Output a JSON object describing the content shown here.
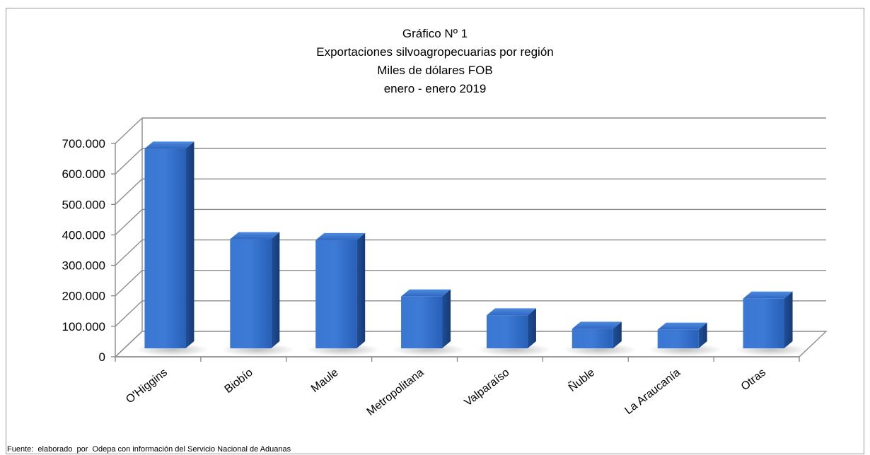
{
  "chart_data": {
    "type": "bar",
    "title": [
      "Gráfico Nº 1",
      "Exportaciones silvoagropecuarias por región",
      "Miles de dólares FOB",
      "enero - enero 2019"
    ],
    "categories": [
      "O'Higgins",
      "Biobío",
      "Maule",
      "Metropolitana",
      "Valparaíso",
      "Ñuble",
      "La Araucanía",
      "Otras"
    ],
    "values": [
      655000,
      358000,
      355000,
      170000,
      108000,
      64000,
      61000,
      163000
    ],
    "yticks": [
      "0",
      "100.000",
      "200.000",
      "300.000",
      "400.000",
      "500.000",
      "600.000",
      "700.000"
    ],
    "ylim": [
      0,
      700000
    ],
    "xlabel": "",
    "ylabel": "",
    "grid": true,
    "style": "3d-column",
    "bar_color": "#2f6fc9"
  },
  "footer": {
    "source": "Fuente:  elaborado  por  Odepa con información del Servicio Nacional de Aduanas"
  }
}
